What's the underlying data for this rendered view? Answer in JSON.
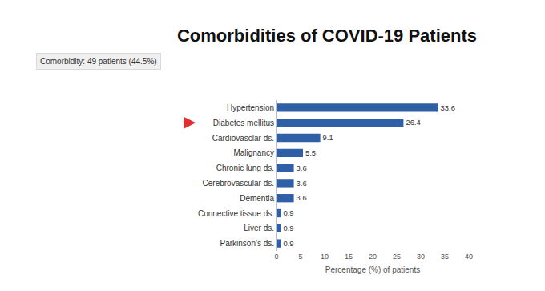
{
  "chart_data": {
    "type": "bar",
    "orientation": "horizontal",
    "title": "Comorbidities of COVID-19 Patients",
    "annotations": [
      "Comorbidity: 49 patients (44.5%)"
    ],
    "x_label": "Percentage (%) of patients",
    "categories": [
      "Hypertension",
      "Diabetes mellitus",
      "Cardiovasclar ds.",
      "Malignancy",
      "Chronic lung ds.",
      "Cerebrovascular ds.",
      "Dementia",
      "Connective tissue ds.",
      "Liver ds.",
      "Parkinson's ds."
    ],
    "values": [
      33.6,
      26.4,
      9.1,
      5.5,
      3.6,
      3.6,
      3.6,
      0.9,
      0.9,
      0.9
    ],
    "color": "#2f5fa7",
    "xlim": [
      0,
      40
    ],
    "xticks": [
      0,
      5,
      10,
      15,
      20,
      25,
      30,
      35,
      40
    ],
    "data_labels": true,
    "grid": false
  }
}
